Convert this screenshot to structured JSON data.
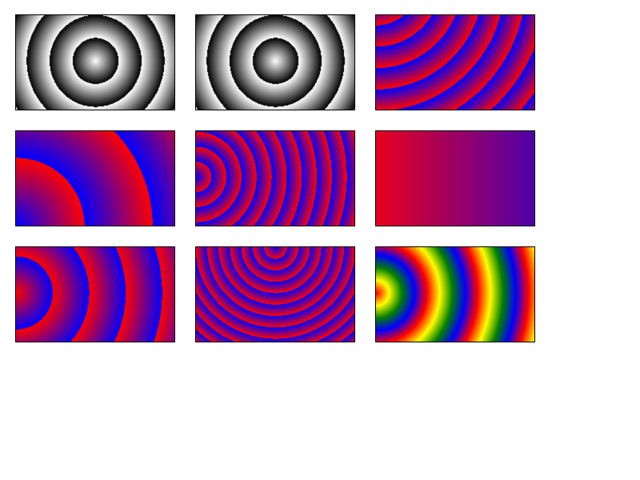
{
  "panels": [
    {
      "name": "gray-radial-rings-1",
      "kind": "gradient-rings",
      "colors": [
        "#ffffff",
        "#000000"
      ],
      "repeat": "sawtooth",
      "center": [
        0.5,
        0.48
      ],
      "period": 0.145
    },
    {
      "name": "gray-radial-rings-2",
      "kind": "gradient-rings",
      "colors": [
        "#ffffff",
        "#000000"
      ],
      "repeat": "sawtooth",
      "center": [
        0.5,
        0.48
      ],
      "period": 0.145
    },
    {
      "name": "red-blue-rings-offset-center",
      "kind": "gradient-rings",
      "colors": [
        "#0000ff",
        "#ff0000"
      ],
      "repeat": "sawtooth",
      "center": [
        0.0,
        -0.35
      ],
      "period": 0.135
    },
    {
      "name": "red-blue-large-rings-bottom-left",
      "kind": "gradient-rings",
      "colors": [
        "#0000ff",
        "#ff0000"
      ],
      "repeat": "sawtooth",
      "center": [
        0.0,
        1.0
      ],
      "period": 0.43
    },
    {
      "name": "red-blue-dense-rings-left",
      "kind": "gradient-rings",
      "colors": [
        "#0000ff",
        "#ff0000"
      ],
      "repeat": "sawtooth",
      "center": [
        0.0,
        0.48
      ],
      "period": 0.095
    },
    {
      "name": "red-to-purple-linear",
      "kind": "linear",
      "colors": [
        "#e8001f",
        "#5000a8"
      ]
    },
    {
      "name": "red-blue-rings-left",
      "kind": "gradient-rings",
      "colors": [
        "#ff0000",
        "#0000ff"
      ],
      "repeat": "sawtooth",
      "center": [
        0.0,
        0.48
      ],
      "period": 0.23
    },
    {
      "name": "red-blue-dense-rings-top",
      "kind": "gradient-rings",
      "colors": [
        "#0000ff",
        "#ff0000"
      ],
      "repeat": "sawtooth",
      "center": [
        0.5,
        0.0
      ],
      "period": 0.072
    },
    {
      "name": "rainbow-rings-left",
      "kind": "rainbow-rings",
      "colors": [
        "#ff0000",
        "#ffff00",
        "#008000",
        "#0000ff",
        "#ff0000"
      ],
      "center": [
        0.0,
        0.48
      ],
      "period": 0.32
    }
  ]
}
